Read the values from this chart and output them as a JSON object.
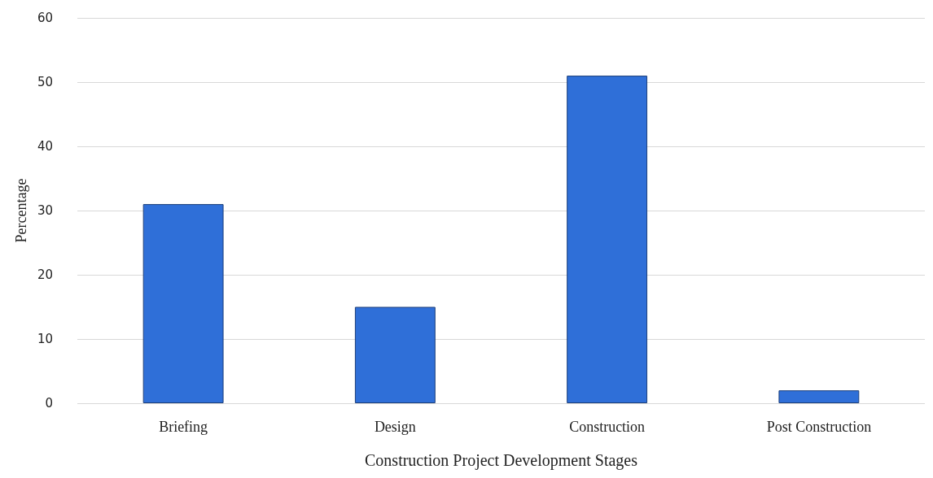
{
  "chart_data": {
    "type": "bar",
    "xlabel": "Construction Project Development Stages",
    "ylabel": "Percentage",
    "categories": [
      "Briefing",
      "Design",
      "Construction",
      "Post Construction"
    ],
    "values": [
      31,
      15,
      51,
      2
    ],
    "color": "#2f6fd8",
    "ylim": [
      0,
      60
    ],
    "yticks": [
      0,
      10,
      20,
      30,
      40,
      50,
      60
    ],
    "grid": "y"
  }
}
